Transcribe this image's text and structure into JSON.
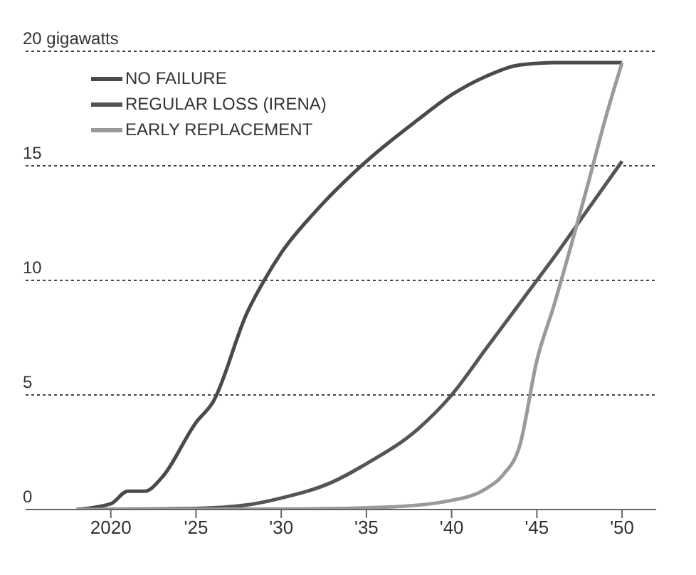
{
  "chart_data": {
    "type": "line",
    "xlim": [
      2015,
      2052
    ],
    "xticks": [
      {
        "value": 2020,
        "label": "2020"
      },
      {
        "value": 2025,
        "label": "'25"
      },
      {
        "value": 2030,
        "label": "'30"
      },
      {
        "value": 2035,
        "label": "'35"
      },
      {
        "value": 2040,
        "label": "'40"
      },
      {
        "value": 2045,
        "label": "'45"
      },
      {
        "value": 2050,
        "label": "'50"
      }
    ],
    "ylim": [
      0,
      20
    ],
    "yticks": [
      0,
      5,
      10,
      15,
      {
        "value": 20,
        "label": "20 gigawatts"
      }
    ],
    "grid": "y",
    "legend": "top left",
    "marker": "none",
    "line_style": "solid",
    "series": [
      {
        "name": "NO FAILURE",
        "color": "#4a4a4a",
        "x": [
          2018,
          2020,
          2021,
          2022,
          2023,
          2025,
          2026,
          2028,
          2029,
          2030,
          2032,
          2035,
          2038,
          2040,
          2042,
          2044,
          2046,
          2050
        ],
        "values": [
          0,
          0.25,
          0.8,
          0.8,
          1.4,
          3.8,
          4.7,
          8.6,
          10,
          11.2,
          13,
          15.2,
          17,
          18.1,
          18.9,
          19.4,
          19.5,
          19.5
        ]
      },
      {
        "name": "REGULAR LOSS (IRENA)",
        "color": "#555555",
        "x": [
          2018,
          2025,
          2028,
          2030,
          2033,
          2035,
          2038,
          2040,
          2042,
          2044,
          2045,
          2046,
          2048,
          2050
        ],
        "values": [
          0,
          0.05,
          0.2,
          0.5,
          1.2,
          2,
          3.5,
          5,
          7,
          9,
          10,
          11,
          13.1,
          15.2
        ]
      },
      {
        "name": "EARLY REPLACEMENT",
        "color": "#9a9a9a",
        "x": [
          2018,
          2030,
          2036,
          2040,
          2042,
          2043,
          2044,
          2045,
          2046,
          2047,
          2048,
          2049,
          2050
        ],
        "values": [
          0,
          0.02,
          0.1,
          0.4,
          0.9,
          1.5,
          2.8,
          6.5,
          8.9,
          11.5,
          14.2,
          17,
          19.5
        ]
      }
    ]
  }
}
